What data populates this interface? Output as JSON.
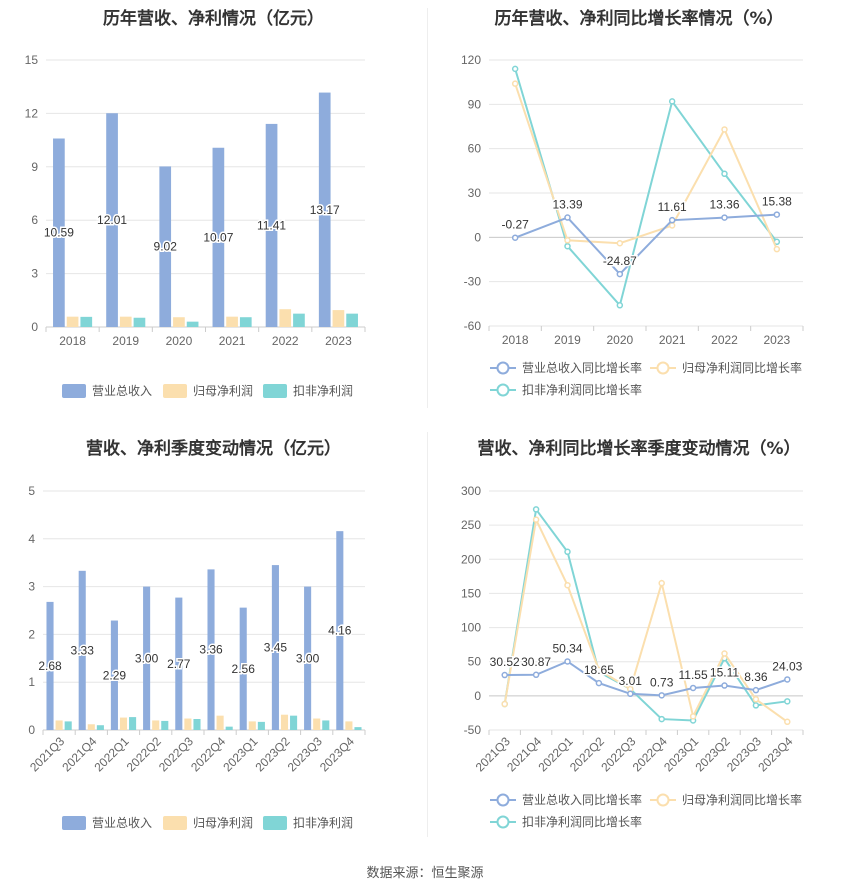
{
  "source_label": "数据来源：恒生聚源",
  "chart_data": [
    {
      "type": "bar",
      "title": "历年营收、净利情况（亿元）",
      "categories": [
        "2018",
        "2019",
        "2020",
        "2021",
        "2022",
        "2023"
      ],
      "ylim": [
        0,
        15
      ],
      "yticks": [
        0,
        3,
        6,
        9,
        12,
        15
      ],
      "series": [
        {
          "name": "营业总收入",
          "color": "#8eacdc",
          "values": [
            10.59,
            12.01,
            9.02,
            10.07,
            11.41,
            13.17
          ],
          "labels": [
            "10.59",
            "12.01",
            "9.02",
            "10.07",
            "11.41",
            "13.17"
          ]
        },
        {
          "name": "归母净利润",
          "color": "#fbdfae",
          "values": [
            0.58,
            0.58,
            0.55,
            0.58,
            1.0,
            0.95
          ]
        },
        {
          "name": "扣非净利润",
          "color": "#80d5d6",
          "values": [
            0.57,
            0.52,
            0.3,
            0.55,
            0.75,
            0.75
          ]
        }
      ],
      "legend": "bottom"
    },
    {
      "type": "line",
      "title": "历年营收、净利同比增长率情况（%）",
      "categories": [
        "2018",
        "2019",
        "2020",
        "2021",
        "2022",
        "2023"
      ],
      "ylim": [
        -60,
        120
      ],
      "yticks": [
        -60,
        -30,
        0,
        30,
        60,
        90,
        120
      ],
      "series": [
        {
          "name": "营业总收入同比增长率",
          "color": "#8eacdc",
          "values": [
            -0.27,
            13.39,
            -24.87,
            11.61,
            13.36,
            15.38
          ],
          "labels": [
            "-0.27",
            "13.39",
            "-24.87",
            "11.61",
            "13.36",
            "15.38"
          ]
        },
        {
          "name": "归母净利润同比增长率",
          "color": "#fbdfae",
          "values": [
            104,
            -2,
            -4,
            8,
            73,
            -8
          ]
        },
        {
          "name": "扣非净利润同比增长率",
          "color": "#80d5d6",
          "values": [
            114,
            -6,
            -46,
            92,
            43,
            -3
          ]
        }
      ],
      "legend": "bottom"
    },
    {
      "type": "bar",
      "title": "营收、净利季度变动情况（亿元）",
      "categories": [
        "2021Q3",
        "2021Q4",
        "2022Q1",
        "2022Q2",
        "2022Q3",
        "2022Q4",
        "2023Q1",
        "2023Q2",
        "2023Q3",
        "2023Q4"
      ],
      "ylim": [
        0,
        5
      ],
      "yticks": [
        0,
        1,
        2,
        3,
        4,
        5
      ],
      "series": [
        {
          "name": "营业总收入",
          "color": "#8eacdc",
          "values": [
            2.68,
            3.33,
            2.29,
            3.0,
            2.77,
            3.36,
            2.56,
            3.45,
            3.0,
            4.16
          ],
          "labels": [
            "2.68",
            "3.33",
            "2.29",
            "3.00",
            "2.77",
            "3.36",
            "2.56",
            "3.45",
            "3.00",
            "4.16"
          ]
        },
        {
          "name": "归母净利润",
          "color": "#fbdfae",
          "values": [
            0.2,
            0.12,
            0.26,
            0.2,
            0.24,
            0.3,
            0.18,
            0.32,
            0.24,
            0.18
          ]
        },
        {
          "name": "扣非净利润",
          "color": "#80d5d6",
          "values": [
            0.18,
            0.1,
            0.27,
            0.19,
            0.23,
            0.07,
            0.17,
            0.3,
            0.2,
            0.06
          ]
        }
      ],
      "legend": "bottom"
    },
    {
      "type": "line",
      "title": "营收、净利同比增长率季度变动情况（%）",
      "categories": [
        "2021Q3",
        "2021Q4",
        "2022Q1",
        "2022Q2",
        "2022Q3",
        "2022Q4",
        "2023Q1",
        "2023Q2",
        "2023Q3",
        "2023Q4"
      ],
      "ylim": [
        -50,
        300
      ],
      "yticks": [
        -50,
        0,
        50,
        100,
        150,
        200,
        250,
        300
      ],
      "series": [
        {
          "name": "营业总收入同比增长率",
          "color": "#8eacdc",
          "values": [
            30.52,
            30.87,
            50.34,
            18.65,
            3.01,
            0.73,
            11.55,
            15.11,
            8.36,
            24.03
          ],
          "labels": [
            "30.52",
            "30.87",
            "50.34",
            "18.65",
            "3.01",
            "0.73",
            "11.55",
            "15.11",
            "8.36",
            "24.03"
          ]
        },
        {
          "name": "归母净利润同比增长率",
          "color": "#fbdfae",
          "values": [
            -12,
            258,
            162,
            38,
            10,
            165,
            -30,
            62,
            -5,
            -38
          ]
        },
        {
          "name": "扣非净利润同比增长率",
          "color": "#80d5d6",
          "values": [
            -12,
            273,
            211,
            35,
            10,
            -34,
            -36,
            55,
            -14,
            -8
          ]
        }
      ],
      "legend": "bottom"
    }
  ]
}
